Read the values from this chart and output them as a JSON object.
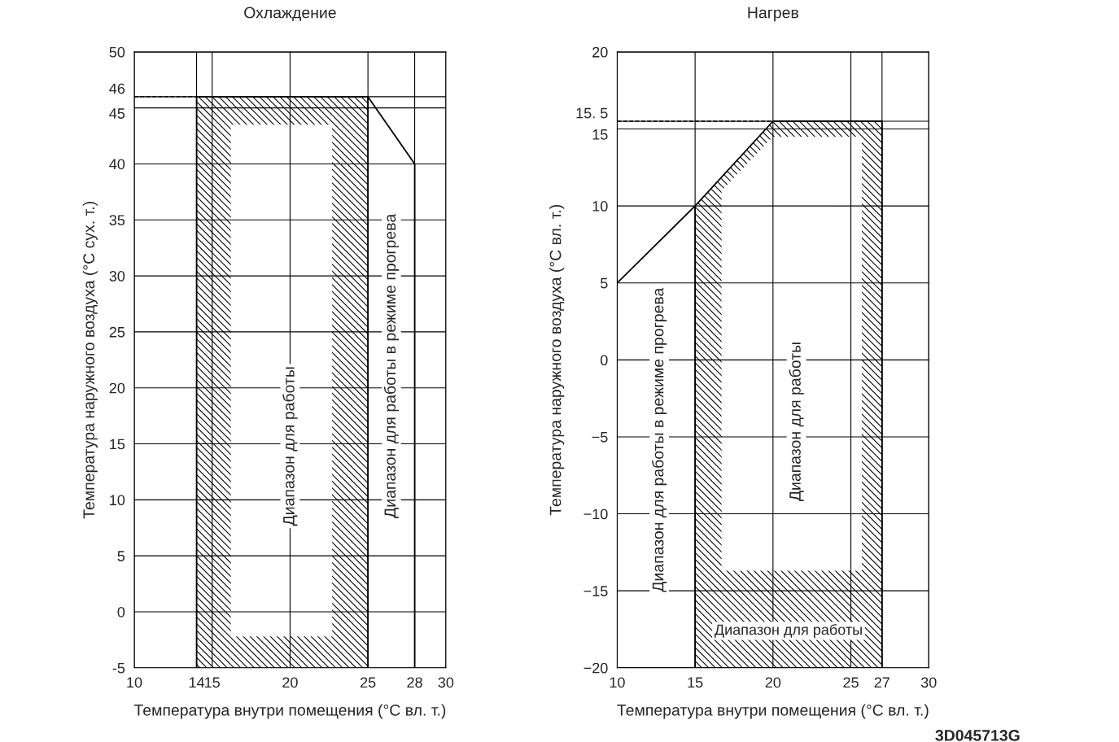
{
  "chart_data": [
    {
      "type": "line",
      "title": "Охлаждение",
      "xlabel": "Температура внутри помещения (°C вл. т.)",
      "ylabel": "Температура наружного воздуха (°C сух. т.)",
      "xlim": [
        10,
        30
      ],
      "xticks": [
        10,
        14,
        15,
        20,
        25,
        28,
        30
      ],
      "ylim": [
        -5,
        50
      ],
      "yticks": [
        -5,
        0,
        5,
        10,
        15,
        20,
        25,
        30,
        35,
        40,
        45,
        46,
        50
      ],
      "grid": true,
      "series": [
        {
          "type": "area",
          "color": "#000000",
          "x": [
            14,
            14,
            16.2,
            16.2
          ],
          "values": [
            -5,
            46,
            46,
            -5
          ]
        },
        {
          "type": "area",
          "color": "#000000",
          "x": [
            16.2,
            16.2,
            22.7,
            22.7
          ],
          "values": [
            43.5,
            46,
            46,
            43.5
          ]
        },
        {
          "type": "area",
          "color": "#000000",
          "x": [
            22.7,
            22.7,
            25,
            25
          ],
          "values": [
            -5,
            46,
            46,
            -5
          ]
        },
        {
          "type": "area",
          "color": "#000000",
          "x": [
            16.2,
            16.2,
            22.7,
            22.7
          ],
          "values": [
            -5,
            -2.2,
            -2.2,
            -5
          ]
        },
        {
          "color": "#000000",
          "x": [
            14,
            14,
            25,
            28,
            28
          ],
          "values": [
            -5,
            46,
            46,
            40,
            -5
          ]
        },
        {
          "color": "#000000",
          "x": [
            25,
            25
          ],
          "values": [
            46,
            -5
          ]
        }
      ],
      "ref_lines": [
        {
          "axis": "y",
          "value": 46,
          "color": "#000000",
          "line_style": "dashed"
        }
      ],
      "annotations": [
        "Диапазон для работы",
        "Диапазон для работы в режиме прогрева"
      ]
    },
    {
      "type": "line",
      "title": "Нагрев",
      "xlabel": "Температура внутри помещения (°C вл. т.)",
      "ylabel": "Температура наружного воздуха (°C вл. т.)",
      "xlim": [
        10,
        30
      ],
      "xticks": [
        10,
        15,
        20,
        25,
        27,
        30
      ],
      "ylim": [
        -20,
        20
      ],
      "yticks": [
        {
          "value": -20,
          "label": "−20"
        },
        {
          "value": -15,
          "label": "−15"
        },
        {
          "value": -10,
          "label": "−10"
        },
        {
          "value": -5,
          "label": "−5"
        },
        0,
        5,
        10,
        15,
        {
          "value": 15.5,
          "label": "15. 5"
        },
        20
      ],
      "grid": true,
      "series": [
        {
          "type": "area",
          "color": "#000000",
          "x": [
            15,
            15,
            16.7,
            16.7
          ],
          "values": [
            -20,
            10,
            11.9,
            -20
          ]
        },
        {
          "type": "area",
          "color": "#000000",
          "x": [
            16.7,
            16.7,
            20,
            25.7,
            25.7,
            20
          ],
          "values": [
            11,
            11.9,
            15.5,
            15.5,
            14.5,
            14.5
          ]
        },
        {
          "type": "area",
          "color": "#000000",
          "x": [
            25.7,
            25.7,
            27,
            27
          ],
          "values": [
            -20,
            15.5,
            15.5,
            -20
          ]
        },
        {
          "type": "area",
          "color": "#000000",
          "x": [
            16.7,
            16.7,
            25.7,
            25.7
          ],
          "values": [
            -20,
            -13.7,
            -13.7,
            -20
          ]
        },
        {
          "color": "#000000",
          "x": [
            10,
            15,
            20,
            27,
            27,
            10
          ],
          "values": [
            5,
            10,
            15.5,
            15.5,
            -20,
            -20
          ]
        },
        {
          "color": "#000000",
          "x": [
            15,
            15
          ],
          "values": [
            10,
            -20
          ]
        }
      ],
      "ref_lines": [
        {
          "axis": "y",
          "value": 15.5,
          "color": "#000000",
          "line_style": "dashed"
        }
      ],
      "annotations": [
        "Диапазон для работы в режиме прогрева",
        "Диапазон для работы",
        "Диапазон для работы",
        "3D045713G"
      ]
    }
  ]
}
